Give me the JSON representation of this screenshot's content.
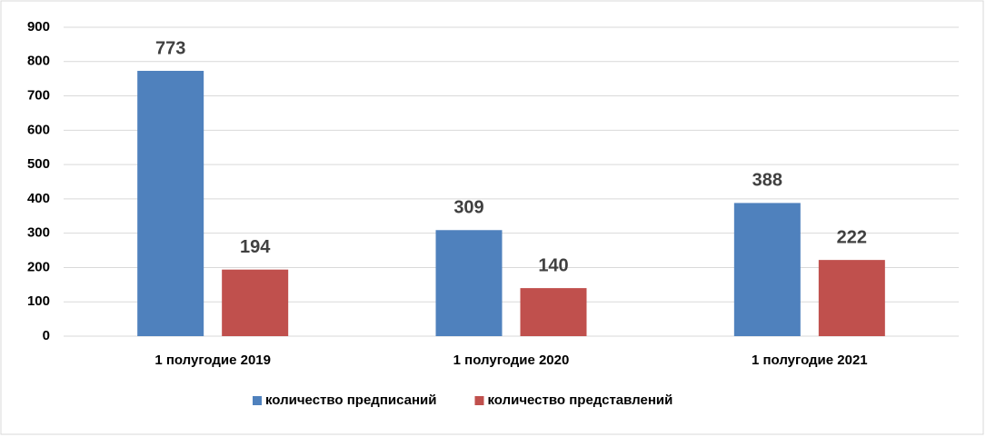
{
  "chart_data": {
    "type": "bar",
    "categories": [
      "1 полугодие 2019",
      "1 полугодие 2020",
      "1 полугодие 2021"
    ],
    "series": [
      {
        "name": "количество предписаний",
        "color": "#4f81bd",
        "values": [
          773,
          309,
          388
        ]
      },
      {
        "name": "количество представлений",
        "color": "#c0504d",
        "values": [
          194,
          140,
          222
        ]
      }
    ],
    "ylim": [
      0,
      900
    ],
    "yticks": [
      0,
      100,
      200,
      300,
      400,
      500,
      600,
      700,
      800,
      900
    ],
    "grid": true,
    "legend": "bottom"
  }
}
